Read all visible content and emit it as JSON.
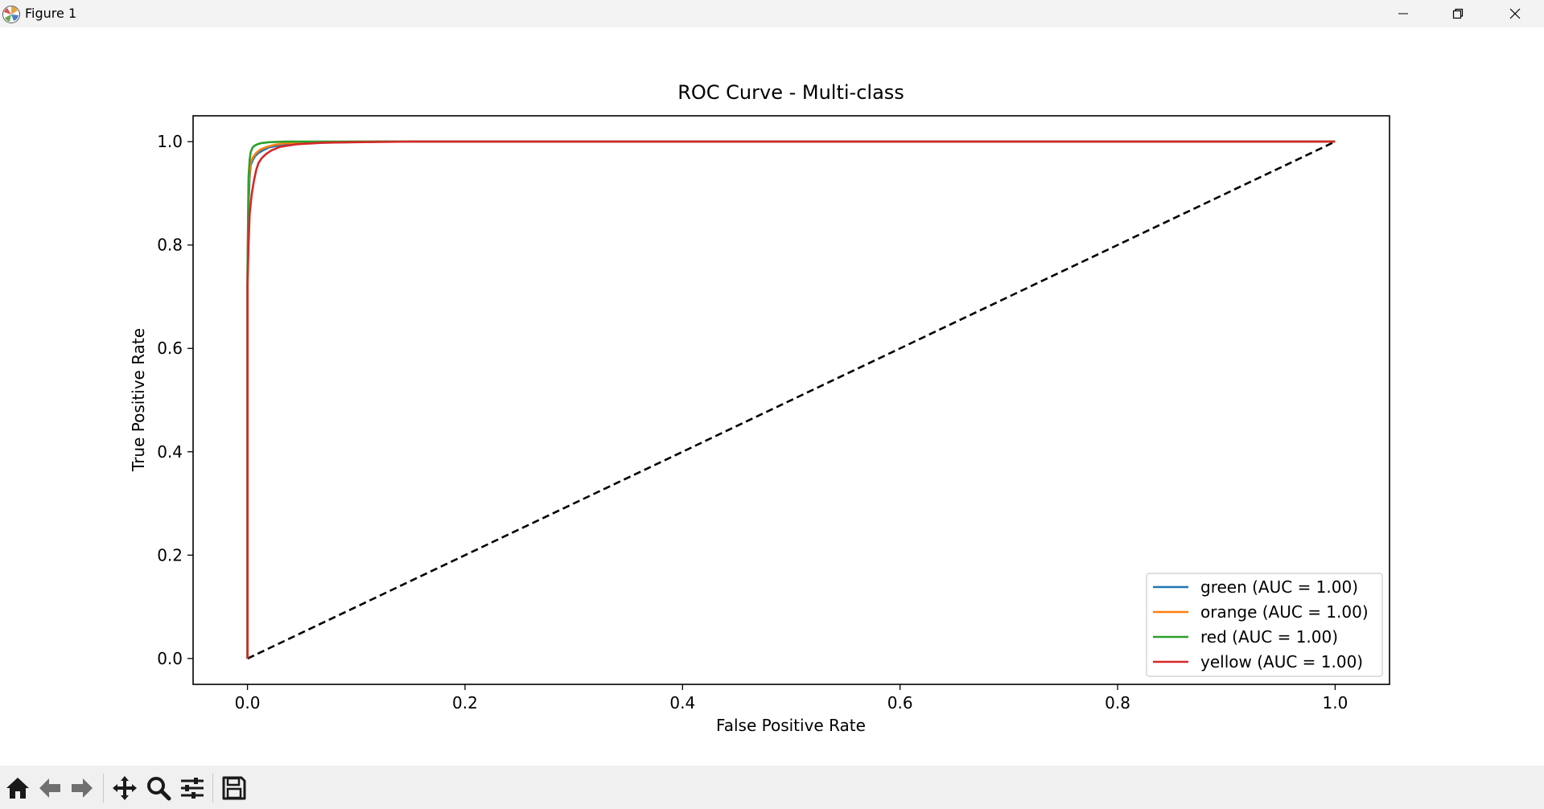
{
  "window": {
    "title": "Figure 1"
  },
  "toolbar": {
    "tools": [
      {
        "name": "home-button",
        "icon": "home-icon"
      },
      {
        "name": "back-button",
        "icon": "back-arrow-icon"
      },
      {
        "name": "forward-button",
        "icon": "forward-arrow-icon"
      },
      {
        "name": "pan-button",
        "icon": "move-icon"
      },
      {
        "name": "zoom-button",
        "icon": "zoom-icon"
      },
      {
        "name": "configure-subplots-button",
        "icon": "sliders-icon"
      },
      {
        "name": "save-button",
        "icon": "save-icon"
      }
    ]
  },
  "chart_data": {
    "type": "line",
    "title": "ROC Curve - Multi-class",
    "xlabel": "False Positive Rate",
    "ylabel": "True Positive Rate",
    "xlim": [
      -0.05,
      1.05
    ],
    "ylim": [
      -0.05,
      1.05
    ],
    "xticks": [
      "0.0",
      "0.2",
      "0.4",
      "0.6",
      "0.8",
      "1.0"
    ],
    "yticks": [
      "0.0",
      "0.2",
      "0.4",
      "0.6",
      "0.8",
      "1.0"
    ],
    "grid": false,
    "legend_position": "lower-right",
    "series": [
      {
        "name": "green (AUC = 1.00)",
        "color": "#1f77b4",
        "x": [
          0,
          0,
          0.001,
          0.002,
          0.003,
          0.005,
          0.007,
          0.01,
          0.015,
          0.02,
          0.03,
          0.045,
          0.07,
          0.12,
          1.0
        ],
        "y": [
          0,
          0.72,
          0.88,
          0.93,
          0.955,
          0.965,
          0.972,
          0.978,
          0.984,
          0.989,
          0.993,
          0.996,
          0.998,
          1.0,
          1.0
        ]
      },
      {
        "name": "orange (AUC = 1.00)",
        "color": "#ff7f0e",
        "x": [
          0,
          0,
          0.001,
          0.002,
          0.003,
          0.005,
          0.008,
          0.012,
          0.018,
          0.025,
          0.035,
          0.06,
          0.1,
          1.0
        ],
        "y": [
          0,
          0.74,
          0.9,
          0.94,
          0.96,
          0.97,
          0.978,
          0.985,
          0.99,
          0.994,
          0.997,
          0.999,
          1.0,
          1.0
        ]
      },
      {
        "name": "red (AUC = 1.00)",
        "color": "#2ca02c",
        "x": [
          0,
          0,
          0.001,
          0.002,
          0.003,
          0.005,
          0.008,
          0.012,
          0.02,
          0.035,
          0.06,
          1.0
        ],
        "y": [
          0,
          0.75,
          0.93,
          0.965,
          0.98,
          0.99,
          0.994,
          0.997,
          0.999,
          1.0,
          1.0,
          1.0
        ]
      },
      {
        "name": "yellow (AUC = 1.00)",
        "color": "#d62728",
        "x": [
          0,
          0,
          0.001,
          0.002,
          0.003,
          0.004,
          0.006,
          0.008,
          0.01,
          0.013,
          0.017,
          0.022,
          0.03,
          0.045,
          0.07,
          0.1,
          0.15,
          1.0
        ],
        "y": [
          0,
          0.72,
          0.8,
          0.86,
          0.88,
          0.9,
          0.925,
          0.945,
          0.958,
          0.968,
          0.976,
          0.983,
          0.99,
          0.995,
          0.998,
          0.999,
          1.0,
          1.0
        ]
      },
      {
        "name": "",
        "color": "#000000",
        "style": "dashed",
        "legend": false,
        "x": [
          0,
          1
        ],
        "y": [
          0,
          1
        ]
      }
    ]
  }
}
